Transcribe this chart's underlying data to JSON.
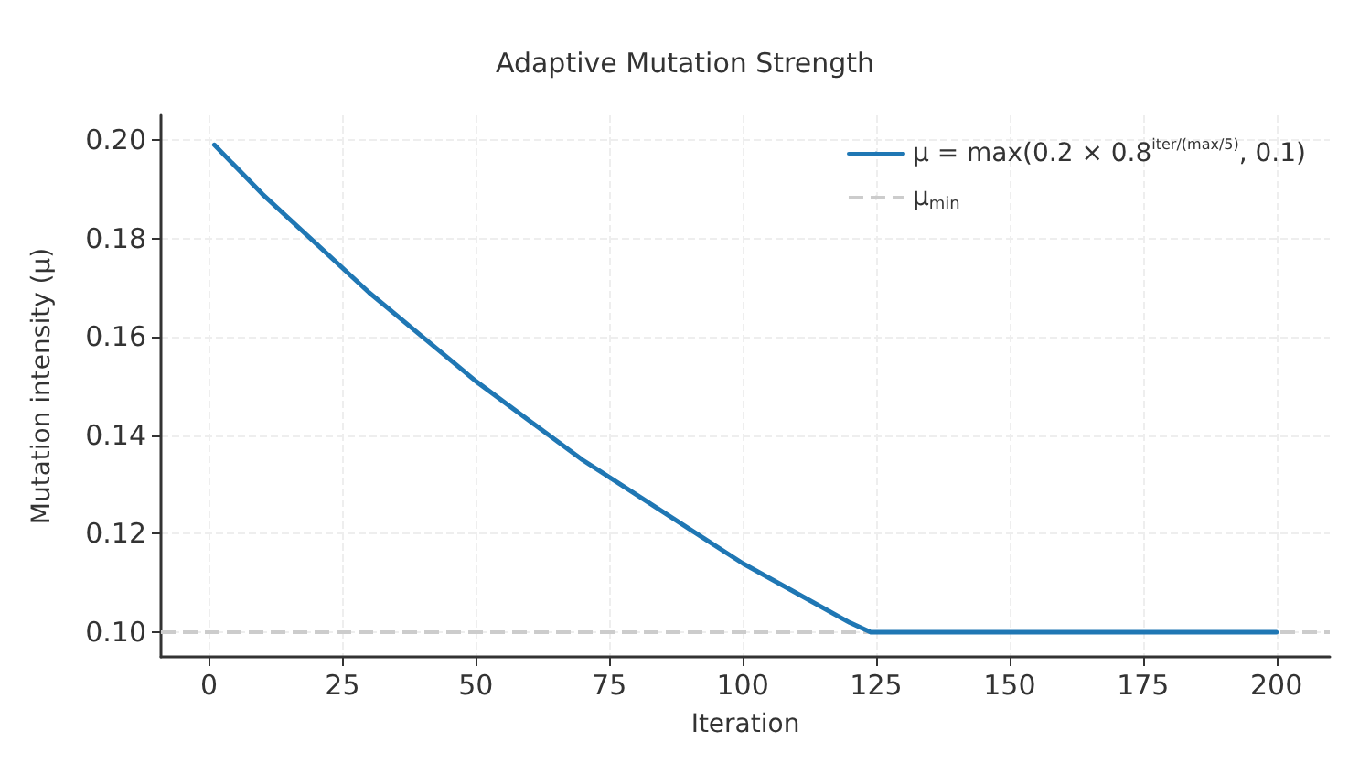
{
  "chart_data": {
    "type": "line",
    "title": "Adaptive Mutation Strength",
    "xlabel": "Iteration",
    "ylabel": "Mutation intensity (μ)",
    "series": [
      {
        "name": "μ = max(0.2 × 0.8$^{iter/(max/5)}$, 0.1)",
        "color": "#1f77b4",
        "x": [
          1,
          10,
          20,
          30,
          40,
          50,
          60,
          70,
          80,
          90,
          100,
          110,
          120,
          124,
          140,
          160,
          180,
          200
        ],
        "values": [
          0.199,
          0.189,
          0.179,
          0.169,
          0.16,
          0.151,
          0.143,
          0.135,
          0.128,
          0.121,
          0.114,
          0.108,
          0.102,
          0.1,
          0.1,
          0.1,
          0.1,
          0.1
        ]
      }
    ],
    "ref_lines": [
      {
        "axis": "y",
        "value": 0.1,
        "label": "μ$_{min}$",
        "color": "#cccccc",
        "line_style": "dashed"
      }
    ],
    "xlim": [
      -9,
      210
    ],
    "xticks": [
      0,
      25,
      50,
      75,
      100,
      125,
      150,
      175,
      200
    ],
    "ylim": [
      0.095,
      0.205
    ],
    "yticks": [
      {
        "value": 0.1,
        "label": "0.10"
      },
      0.12,
      0.14,
      0.16,
      0.18,
      {
        "value": 0.2,
        "label": "0.20"
      }
    ],
    "grid": true,
    "legend": "top right",
    "line_style": "solid"
  }
}
